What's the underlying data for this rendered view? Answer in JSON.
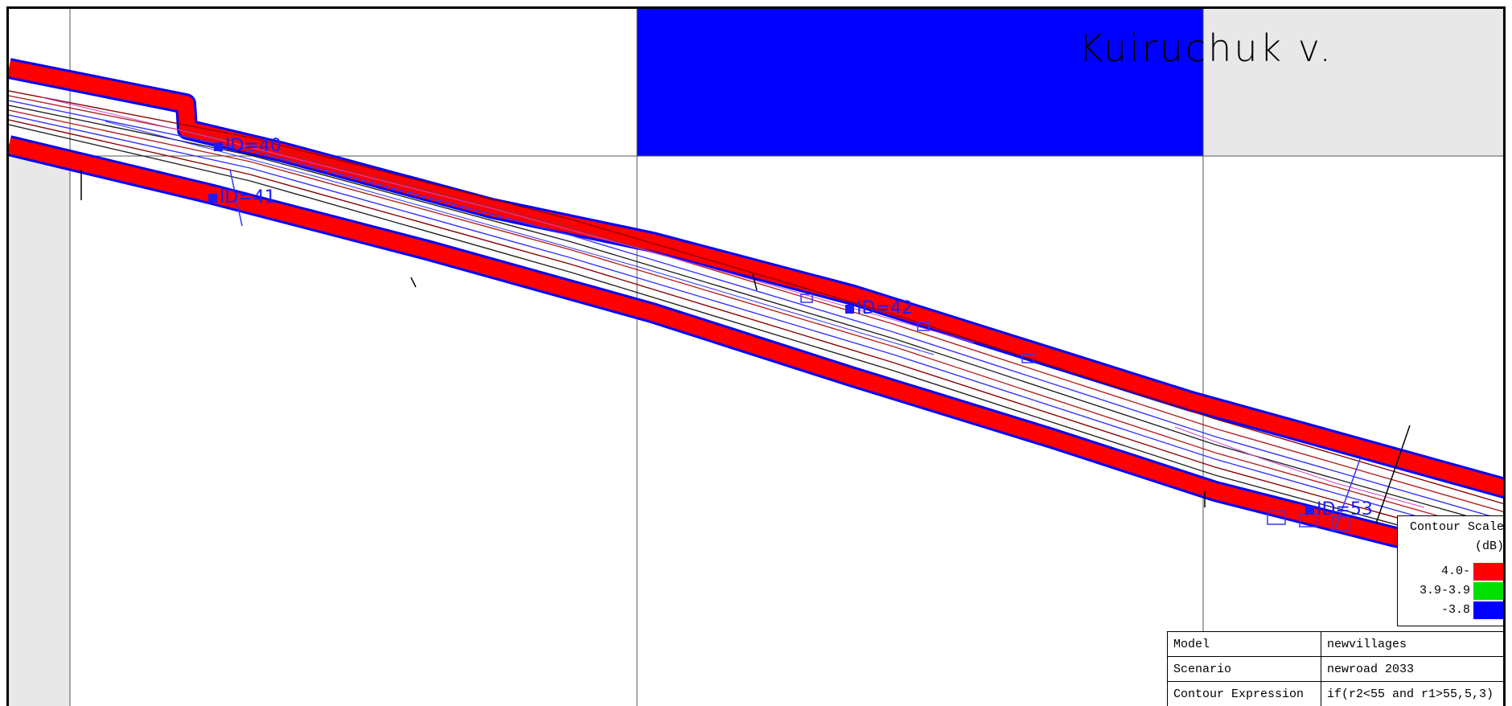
{
  "title": "Kuiruchuk v.",
  "receivers": [
    {
      "label": "ID=40"
    },
    {
      "label": "ID=41"
    },
    {
      "label": "ID=42"
    },
    {
      "label": "ID=53"
    }
  ],
  "legend": {
    "title_line1": "Contour Scale",
    "title_line2": "(dB)",
    "ranges": [
      {
        "label": "4.0-",
        "color": "#ff0000"
      },
      {
        "label": "3.9-3.9",
        "color": "#00e000"
      },
      {
        "label": "-3.8",
        "color": "#0000ff"
      }
    ]
  },
  "info": [
    {
      "key": "Model",
      "value": "newvillages"
    },
    {
      "key": "Scenario",
      "value": "newroad 2033"
    },
    {
      "key": "Contour Expression",
      "value": "if(r2<55 and r1>55,5,3)"
    }
  ],
  "colors": {
    "contour_band": "#ff0000",
    "contour_edge": "#0000ff",
    "contour_mid": "#00e000",
    "road_lines": "#b22222",
    "blue_lines": "#3333ff",
    "tile_blue": "#0000ff",
    "tile_grey": "#e8e8e8"
  }
}
